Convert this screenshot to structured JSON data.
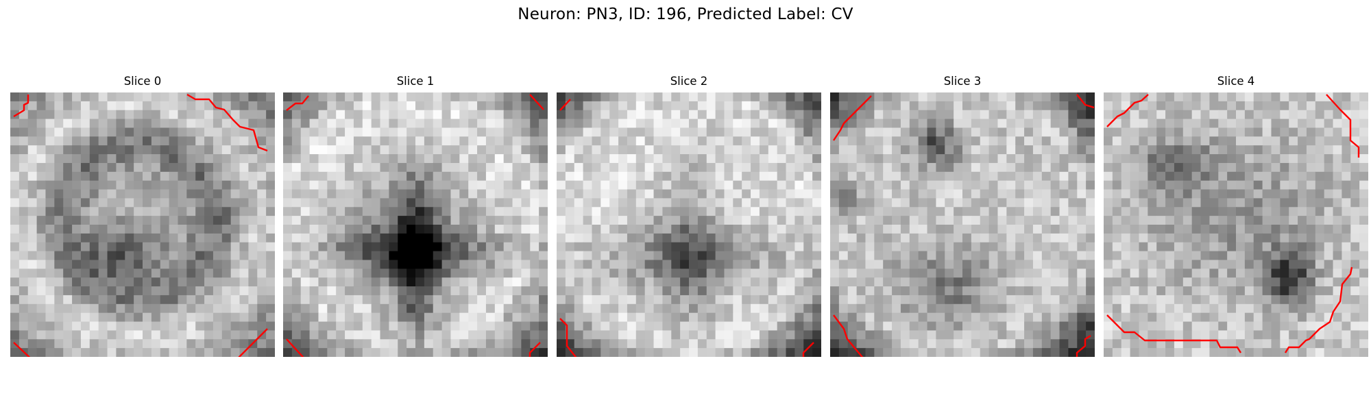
{
  "figure": {
    "title": "Neuron: PN3, ID: 196, Predicted Label: CV"
  },
  "panels": [
    {
      "title": "Slice 0",
      "pattern": "ring-blob",
      "seed": 11
    },
    {
      "title": "Slice 1",
      "pattern": "cross",
      "seed": 23
    },
    {
      "title": "Slice 2",
      "pattern": "faint-cross",
      "seed": 37
    },
    {
      "title": "Slice 3",
      "pattern": "speckle",
      "seed": 51
    },
    {
      "title": "Slice 4",
      "pattern": "spots",
      "seed": 67
    }
  ],
  "colors": {
    "contour": "#ff0000",
    "background": "#ffffff"
  }
}
